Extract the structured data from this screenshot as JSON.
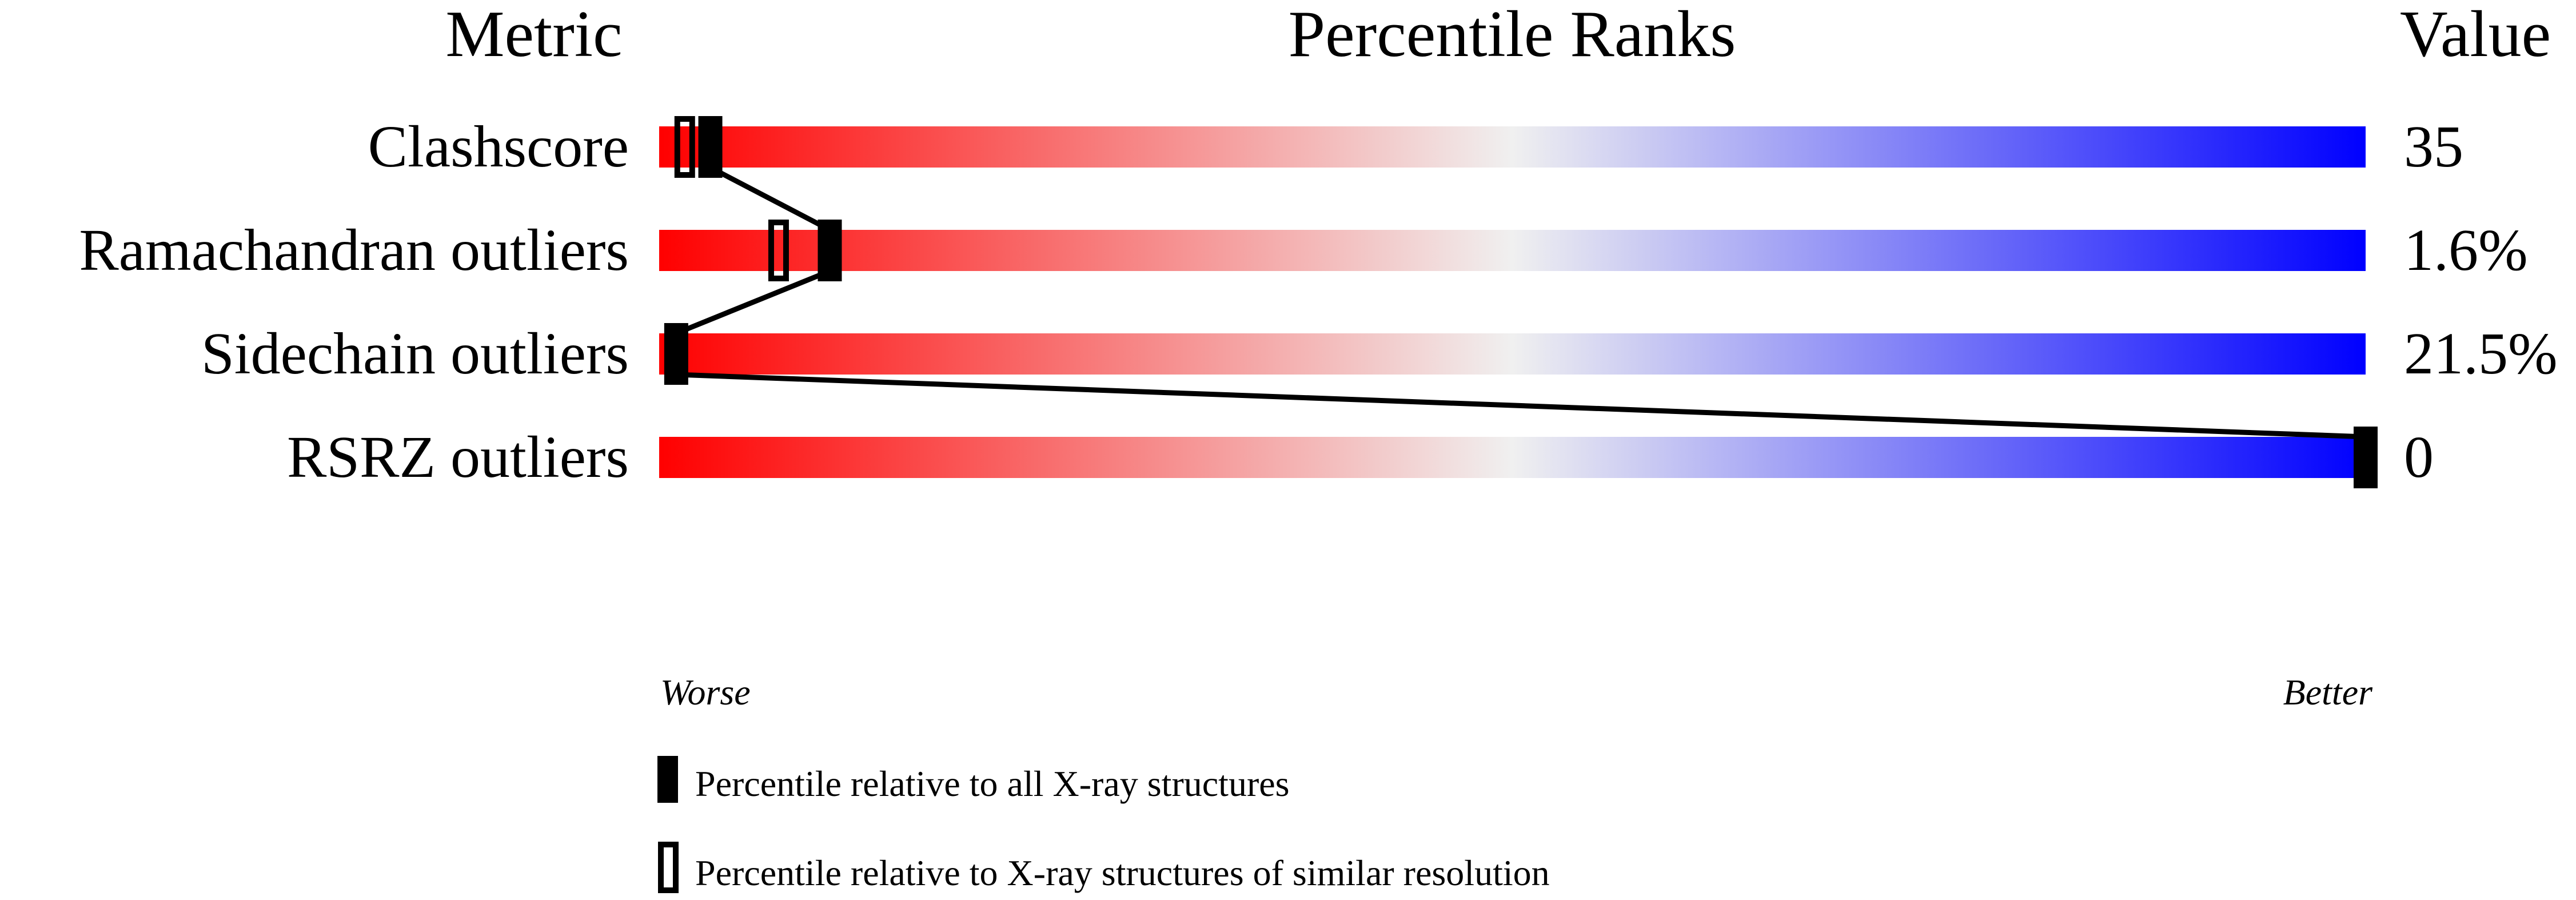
{
  "chart_data": {
    "type": "percentile-slider",
    "headers": {
      "metric": "Metric",
      "percentile": "Percentile Ranks",
      "value": "Value"
    },
    "xlim": [
      0,
      100
    ],
    "axis_labels": {
      "left": "Worse",
      "right": "Better"
    },
    "gradient_colors": [
      "#ff0000",
      "#f0f0f0",
      "#0000ff"
    ],
    "rows": [
      {
        "metric": "Clashscore",
        "value": "35",
        "percentile_all": 3,
        "percentile_similar": 1.5
      },
      {
        "metric": "Ramachandran outliers",
        "value": "1.6%",
        "percentile_all": 10,
        "percentile_similar": 7
      },
      {
        "metric": "Sidechain outliers",
        "value": "21.5%",
        "percentile_all": 1,
        "percentile_similar": null
      },
      {
        "metric": "RSRZ outliers",
        "value": "0",
        "percentile_all": 100,
        "percentile_similar": null
      }
    ],
    "legend": [
      {
        "marker": "filled",
        "label": "Percentile relative to all X-ray structures"
      },
      {
        "marker": "open",
        "label": "Percentile relative to X-ray structures of similar resolution"
      }
    ]
  }
}
